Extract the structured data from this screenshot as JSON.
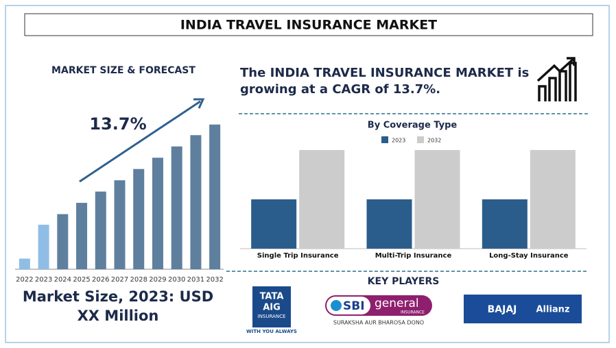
{
  "header": {
    "title": "INDIA TRAVEL INSURANCE MARKET"
  },
  "headline": {
    "line1": "The INDIA TRAVEL INSURANCE MARKET is",
    "line2": "growing at a CAGR of 13.7%."
  },
  "chart_data": [
    {
      "type": "bar",
      "title": "MARKET SIZE & FORECAST",
      "categories": [
        "2022",
        "2023",
        "2024",
        "2025",
        "2026",
        "2027",
        "2028",
        "2029",
        "2030",
        "2031",
        "2032"
      ],
      "values": [
        16,
        67,
        83,
        100,
        117,
        134,
        151,
        168,
        185,
        202,
        218
      ],
      "colors": [
        "#8fbde6",
        "#8fbde6",
        "#5f7f9e",
        "#5f7f9e",
        "#5f7f9e",
        "#5f7f9e",
        "#5f7f9e",
        "#5f7f9e",
        "#5f7f9e",
        "#5f7f9e",
        "#5f7f9e"
      ],
      "ylim": [
        0,
        225
      ],
      "annotation": "13.7%"
    },
    {
      "type": "grouped-bar",
      "title": "By Coverage Type",
      "categories": [
        "Single Trip Insurance",
        "Multi-Trip Insurance",
        "Long-Stay Insurance"
      ],
      "series": [
        {
          "name": "2023",
          "color": "#2b5d8c",
          "values": [
            72,
            72,
            72
          ]
        },
        {
          "name": "2032",
          "color": "#cccccc",
          "values": [
            144,
            144,
            144
          ]
        }
      ],
      "ylim": [
        0,
        144
      ]
    }
  ],
  "footer": {
    "market_size": {
      "line1": "Market Size, 2023: USD",
      "line2": "XX Million"
    }
  },
  "key_players": {
    "title": "KEY PLAYERS",
    "tata": {
      "line1": "TATA",
      "line2": "AIG",
      "line3": "INSURANCE",
      "tagline": "WITH YOU ALWAYS"
    },
    "sbi": {
      "brand": "SBI",
      "word": "general",
      "sub": "INSURANCE",
      "tagline": "SURAKSHA AUR BHAROSA DONO"
    },
    "bajaj": {
      "brand": "BAJAJ",
      "partner": "Allianz"
    }
  }
}
